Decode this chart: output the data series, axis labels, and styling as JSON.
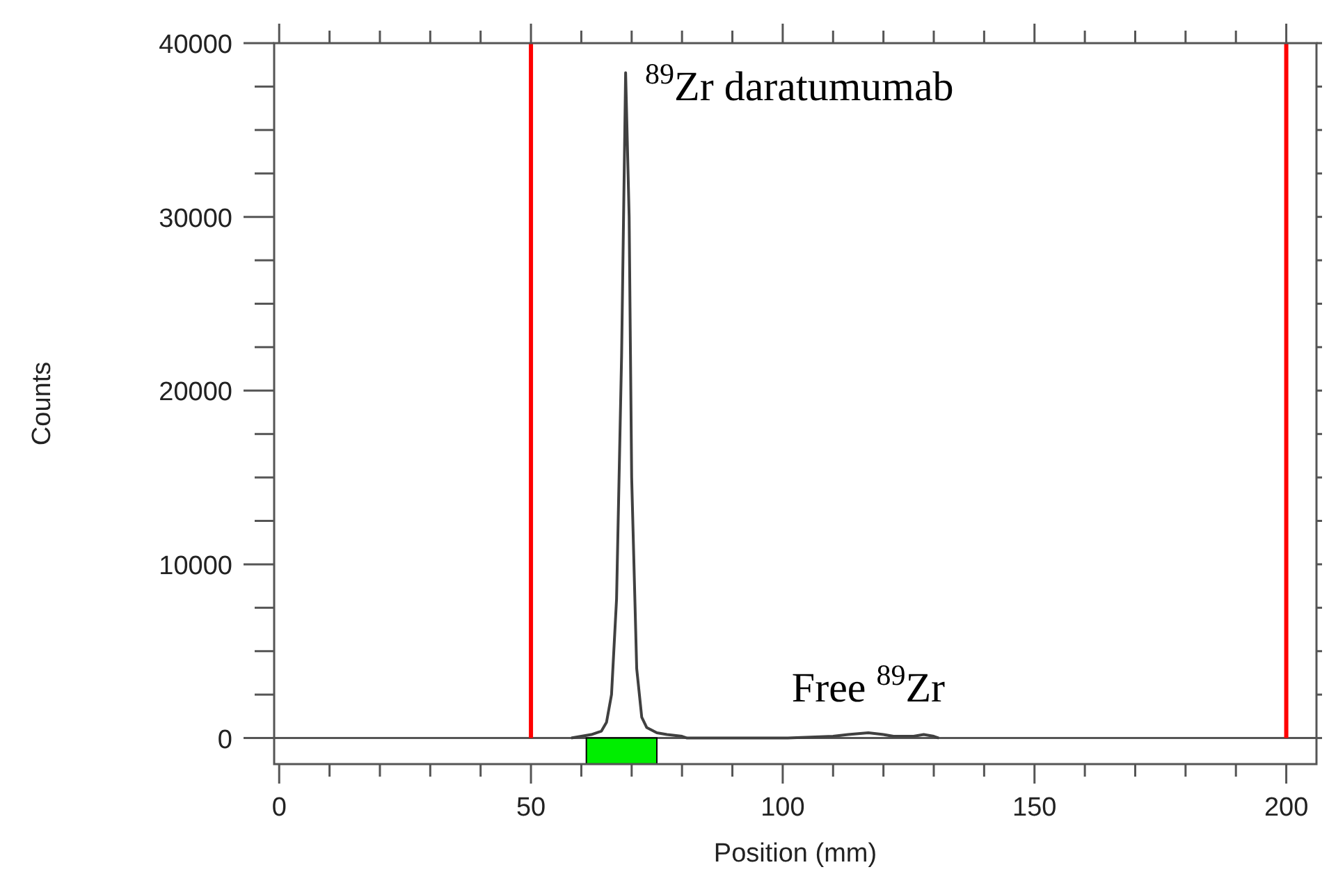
{
  "chart_data": {
    "type": "line",
    "xlabel": "Position (mm)",
    "ylabel": "Counts",
    "xlim": [
      -1,
      206
    ],
    "ylim": [
      -1500,
      40000
    ],
    "xticks": [
      0,
      {
        "value": 10,
        "label": null
      },
      {
        "value": 20,
        "label": null
      },
      {
        "value": 30,
        "label": null
      },
      {
        "value": 40,
        "label": null
      },
      50,
      {
        "value": 60,
        "label": null
      },
      {
        "value": 70,
        "label": null
      },
      {
        "value": 80,
        "label": null
      },
      {
        "value": 90,
        "label": null
      },
      100,
      {
        "value": 110,
        "label": null
      },
      {
        "value": 120,
        "label": null
      },
      {
        "value": 130,
        "label": null
      },
      {
        "value": 140,
        "label": null
      },
      150,
      {
        "value": 160,
        "label": null
      },
      {
        "value": 170,
        "label": null
      },
      {
        "value": 180,
        "label": null
      },
      {
        "value": 190,
        "label": null
      },
      200
    ],
    "yticks": [
      0,
      {
        "value": 2500,
        "label": null
      },
      {
        "value": 5000,
        "label": null
      },
      {
        "value": 7500,
        "label": null
      },
      10000,
      {
        "value": 12500,
        "label": null
      },
      {
        "value": 15000,
        "label": null
      },
      {
        "value": 17500,
        "label": null
      },
      20000,
      {
        "value": 22500,
        "label": null
      },
      {
        "value": 25000,
        "label": null
      },
      {
        "value": 27500,
        "label": null
      },
      30000,
      {
        "value": 32500,
        "label": null
      },
      {
        "value": 35000,
        "label": null
      },
      {
        "value": 37500,
        "label": null
      },
      40000
    ],
    "grid": false,
    "marker": "none",
    "line_style": "solid",
    "series": [
      {
        "color": "#404040",
        "x": [
          58,
          60,
          62,
          64,
          65,
          66,
          67,
          68,
          68.8,
          69.5,
          70,
          71,
          72,
          73,
          75,
          77,
          80,
          81,
          101,
          110,
          113,
          117,
          120,
          122,
          126,
          128,
          130,
          131
        ],
        "values": [
          0,
          100,
          200,
          400,
          900,
          2500,
          8000,
          22000,
          38300,
          30000,
          15000,
          4000,
          1200,
          600,
          300,
          200,
          100,
          0,
          0,
          100,
          200,
          300,
          200,
          100,
          100,
          200,
          100,
          0
        ]
      },
      {
        "type": "histogram",
        "color": "#00ee00",
        "bins": [
          61,
          75
        ],
        "values": [
          -1500
        ]
      }
    ],
    "ref_lines": [
      {
        "axis": "x",
        "value": 50,
        "color": "#ff0000"
      },
      {
        "axis": "x",
        "value": 200,
        "color": "#ff0000"
      }
    ],
    "annotations": [
      {
        "text": "$^{89}$Zr daratumumab",
        "x": 68.8,
        "y": 38300
      },
      {
        "text": "Free $^{89}$Zr",
        "x": 117,
        "y": 350
      }
    ]
  }
}
